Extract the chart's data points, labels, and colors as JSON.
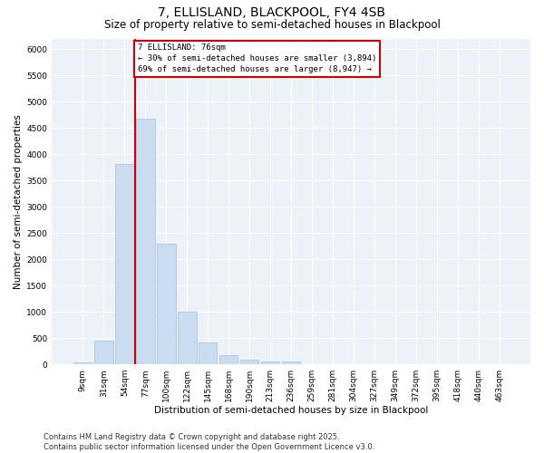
{
  "title": "7, ELLISLAND, BLACKPOOL, FY4 4SB",
  "subtitle": "Size of property relative to semi-detached houses in Blackpool",
  "xlabel": "Distribution of semi-detached houses by size in Blackpool",
  "ylabel": "Number of semi-detached properties",
  "categories": [
    "9sqm",
    "31sqm",
    "54sqm",
    "77sqm",
    "100sqm",
    "122sqm",
    "145sqm",
    "168sqm",
    "190sqm",
    "213sqm",
    "236sqm",
    "259sqm",
    "281sqm",
    "304sqm",
    "327sqm",
    "349sqm",
    "372sqm",
    "395sqm",
    "418sqm",
    "440sqm",
    "463sqm"
  ],
  "values": [
    30,
    450,
    3820,
    4680,
    2300,
    1010,
    420,
    180,
    90,
    60,
    55,
    10,
    5,
    2,
    1,
    1,
    0,
    0,
    0,
    0,
    0
  ],
  "bar_color": "#c9dcf0",
  "bar_edge_color": "#a8c0de",
  "vline_x_index": 3,
  "vline_color": "#cc0000",
  "property_size": "76sqm",
  "property_name": "7 ELLISLAND",
  "pct_smaller": 30,
  "count_smaller": "3,894",
  "pct_larger": 69,
  "count_larger": "8,947",
  "annotation_box_color": "#cc0000",
  "ylim": [
    0,
    6200
  ],
  "yticks": [
    0,
    500,
    1000,
    1500,
    2000,
    2500,
    3000,
    3500,
    4000,
    4500,
    5000,
    5500,
    6000
  ],
  "background_color": "#edf1f8",
  "footer": "Contains HM Land Registry data © Crown copyright and database right 2025.\nContains public sector information licensed under the Open Government Licence v3.0.",
  "title_fontsize": 10,
  "subtitle_fontsize": 8.5,
  "axis_label_fontsize": 7.5,
  "tick_fontsize": 6.5,
  "footer_fontsize": 6.0,
  "annot_fontsize": 6.5
}
